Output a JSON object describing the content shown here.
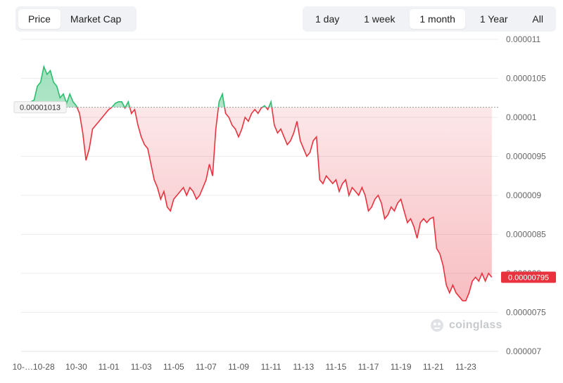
{
  "metric_tabs": [
    {
      "label": "Price",
      "active": true
    },
    {
      "label": "Market Cap",
      "active": false
    }
  ],
  "range_tabs": [
    {
      "label": "1 day",
      "active": false
    },
    {
      "label": "1 week",
      "active": false
    },
    {
      "label": "1 month",
      "active": true
    },
    {
      "label": "1 Year",
      "active": false
    },
    {
      "label": "All",
      "active": false
    }
  ],
  "watermark": "coinglass",
  "colors": {
    "up": "#2ebd6f",
    "down": "#e8333f",
    "baseline": "#999999",
    "current_badge": "#e8333f"
  },
  "chart_data": {
    "type": "area",
    "baseline_value": 1.013e-05,
    "baseline_label": "0.00001013",
    "current_value": 7.95e-06,
    "current_label": "0.00000795",
    "y_ticks": [
      "0.000011",
      "0.0000105",
      "0.00001",
      "0.0000095",
      "0.000009",
      "0.0000085",
      "0.000008",
      "0.0000075",
      "0.000007"
    ],
    "y_tick_values": [
      1.1e-05,
      1.05e-05,
      1e-05,
      9.5e-06,
      9e-06,
      8.5e-06,
      8e-06,
      7.5e-06,
      7e-06
    ],
    "ylim": [
      7e-06,
      1.12e-05
    ],
    "x_ticks": [
      {
        "label": "10-…",
        "day": -0.3
      },
      {
        "label": "10-28",
        "day": 1
      },
      {
        "label": "10-30",
        "day": 3
      },
      {
        "label": "11-01",
        "day": 5
      },
      {
        "label": "11-03",
        "day": 7
      },
      {
        "label": "11-05",
        "day": 9
      },
      {
        "label": "11-07",
        "day": 11
      },
      {
        "label": "11-09",
        "day": 13
      },
      {
        "label": "11-11",
        "day": 15
      },
      {
        "label": "11-13",
        "day": 17
      },
      {
        "label": "11-15",
        "day": 19
      },
      {
        "label": "11-17",
        "day": 21
      },
      {
        "label": "11-19",
        "day": 23
      },
      {
        "label": "11-21",
        "day": 25
      },
      {
        "label": "11-23",
        "day": 27
      }
    ],
    "series": [
      {
        "points": [
          [
            0.0,
            1.015e-05
          ],
          [
            0.2,
            1.02e-05
          ],
          [
            0.4,
            1.022e-05
          ],
          [
            0.6,
            1.04e-05
          ],
          [
            0.8,
            1.045e-05
          ],
          [
            1.0,
            1.065e-05
          ],
          [
            1.2,
            1.055e-05
          ],
          [
            1.4,
            1.06e-05
          ],
          [
            1.6,
            1.045e-05
          ],
          [
            1.8,
            1.04e-05
          ],
          [
            2.0,
            1.025e-05
          ],
          [
            2.2,
            1.03e-05
          ],
          [
            2.4,
            1.018e-05
          ],
          [
            2.6,
            1.03e-05
          ],
          [
            2.8,
            1.02e-05
          ],
          [
            3.0,
            1.015e-05
          ],
          [
            3.2,
            1.005e-05
          ],
          [
            3.4,
            9.8e-06
          ],
          [
            3.6,
            9.45e-06
          ],
          [
            3.8,
            9.6e-06
          ],
          [
            4.0,
            9.85e-06
          ],
          [
            4.2,
            9.9e-06
          ],
          [
            4.4,
            9.95e-06
          ],
          [
            4.6,
            1e-05
          ],
          [
            4.8,
            1.005e-05
          ],
          [
            5.0,
            1.01e-05
          ],
          [
            5.2,
            1.013e-05
          ],
          [
            5.4,
            1.018e-05
          ],
          [
            5.6,
            1.02e-05
          ],
          [
            5.8,
            1.02e-05
          ],
          [
            6.0,
            1.012e-05
          ],
          [
            6.2,
            1.02e-05
          ],
          [
            6.4,
            1.005e-05
          ],
          [
            6.6,
            1.01e-05
          ],
          [
            6.8,
            9.9e-06
          ],
          [
            7.0,
            9.75e-06
          ],
          [
            7.2,
            9.65e-06
          ],
          [
            7.4,
            9.6e-06
          ],
          [
            7.6,
            9.4e-06
          ],
          [
            7.8,
            9.2e-06
          ],
          [
            8.0,
            9.1e-06
          ],
          [
            8.2,
            8.95e-06
          ],
          [
            8.4,
            9.05e-06
          ],
          [
            8.6,
            8.85e-06
          ],
          [
            8.8,
            8.8e-06
          ],
          [
            9.0,
            8.95e-06
          ],
          [
            9.2,
            9e-06
          ],
          [
            9.4,
            9.05e-06
          ],
          [
            9.6,
            9.1e-06
          ],
          [
            9.8,
            9e-06
          ],
          [
            10.0,
            9.1e-06
          ],
          [
            10.2,
            9.05e-06
          ],
          [
            10.4,
            8.95e-06
          ],
          [
            10.6,
            9e-06
          ],
          [
            10.8,
            9.1e-06
          ],
          [
            11.0,
            9.2e-06
          ],
          [
            11.2,
            9.4e-06
          ],
          [
            11.4,
            9.25e-06
          ],
          [
            11.6,
            9.85e-06
          ],
          [
            11.8,
            1.02e-05
          ],
          [
            12.0,
            1.03e-05
          ],
          [
            12.2,
            1.005e-05
          ],
          [
            12.4,
            1e-05
          ],
          [
            12.6,
            9.9e-06
          ],
          [
            12.8,
            9.85e-06
          ],
          [
            13.0,
            9.75e-06
          ],
          [
            13.2,
            9.85e-06
          ],
          [
            13.4,
            1e-05
          ],
          [
            13.6,
            9.95e-06
          ],
          [
            13.8,
            1.005e-05
          ],
          [
            14.0,
            1.01e-05
          ],
          [
            14.2,
            1.005e-05
          ],
          [
            14.4,
            1.012e-05
          ],
          [
            14.6,
            1.015e-05
          ],
          [
            14.8,
            1.01e-05
          ],
          [
            15.0,
            1.02e-05
          ],
          [
            15.2,
            9.9e-06
          ],
          [
            15.4,
            9.8e-06
          ],
          [
            15.6,
            9.85e-06
          ],
          [
            15.8,
            9.75e-06
          ],
          [
            16.0,
            9.65e-06
          ],
          [
            16.2,
            9.7e-06
          ],
          [
            16.4,
            9.8e-06
          ],
          [
            16.6,
            9.95e-06
          ],
          [
            16.8,
            9.7e-06
          ],
          [
            17.0,
            9.6e-06
          ],
          [
            17.2,
            9.5e-06
          ],
          [
            17.4,
            9.55e-06
          ],
          [
            17.6,
            9.7e-06
          ],
          [
            17.8,
            9.75e-06
          ],
          [
            18.0,
            9.2e-06
          ],
          [
            18.2,
            9.15e-06
          ],
          [
            18.4,
            9.25e-06
          ],
          [
            18.6,
            9.2e-06
          ],
          [
            18.8,
            9.15e-06
          ],
          [
            19.0,
            9.2e-06
          ],
          [
            19.2,
            9.05e-06
          ],
          [
            19.4,
            9.15e-06
          ],
          [
            19.6,
            9.2e-06
          ],
          [
            19.8,
            9e-06
          ],
          [
            20.0,
            9.1e-06
          ],
          [
            20.2,
            9.05e-06
          ],
          [
            20.4,
            9e-06
          ],
          [
            20.6,
            9.1e-06
          ],
          [
            20.8,
            9e-06
          ],
          [
            21.0,
            8.8e-06
          ],
          [
            21.2,
            8.85e-06
          ],
          [
            21.4,
            8.95e-06
          ],
          [
            21.6,
            9e-06
          ],
          [
            21.8,
            8.9e-06
          ],
          [
            22.0,
            8.7e-06
          ],
          [
            22.2,
            8.75e-06
          ],
          [
            22.4,
            8.85e-06
          ],
          [
            22.6,
            8.8e-06
          ],
          [
            22.8,
            8.9e-06
          ],
          [
            23.0,
            8.95e-06
          ],
          [
            23.2,
            8.8e-06
          ],
          [
            23.4,
            8.65e-06
          ],
          [
            23.6,
            8.7e-06
          ],
          [
            23.8,
            8.6e-06
          ],
          [
            24.0,
            8.45e-06
          ],
          [
            24.2,
            8.65e-06
          ],
          [
            24.4,
            8.7e-06
          ],
          [
            24.6,
            8.65e-06
          ],
          [
            24.8,
            8.7e-06
          ],
          [
            25.0,
            8.72e-06
          ],
          [
            25.2,
            8.32e-06
          ],
          [
            25.4,
            8.25e-06
          ],
          [
            25.6,
            8.1e-06
          ],
          [
            25.8,
            7.85e-06
          ],
          [
            26.0,
            7.75e-06
          ],
          [
            26.2,
            7.85e-06
          ],
          [
            26.4,
            7.75e-06
          ],
          [
            26.6,
            7.7e-06
          ],
          [
            26.8,
            7.65e-06
          ],
          [
            27.0,
            7.65e-06
          ],
          [
            27.2,
            7.75e-06
          ],
          [
            27.4,
            7.9e-06
          ],
          [
            27.6,
            7.95e-06
          ],
          [
            27.8,
            7.9e-06
          ],
          [
            28.0,
            8e-06
          ],
          [
            28.2,
            7.9e-06
          ],
          [
            28.4,
            8e-06
          ],
          [
            28.6,
            7.95e-06
          ]
        ]
      }
    ]
  }
}
